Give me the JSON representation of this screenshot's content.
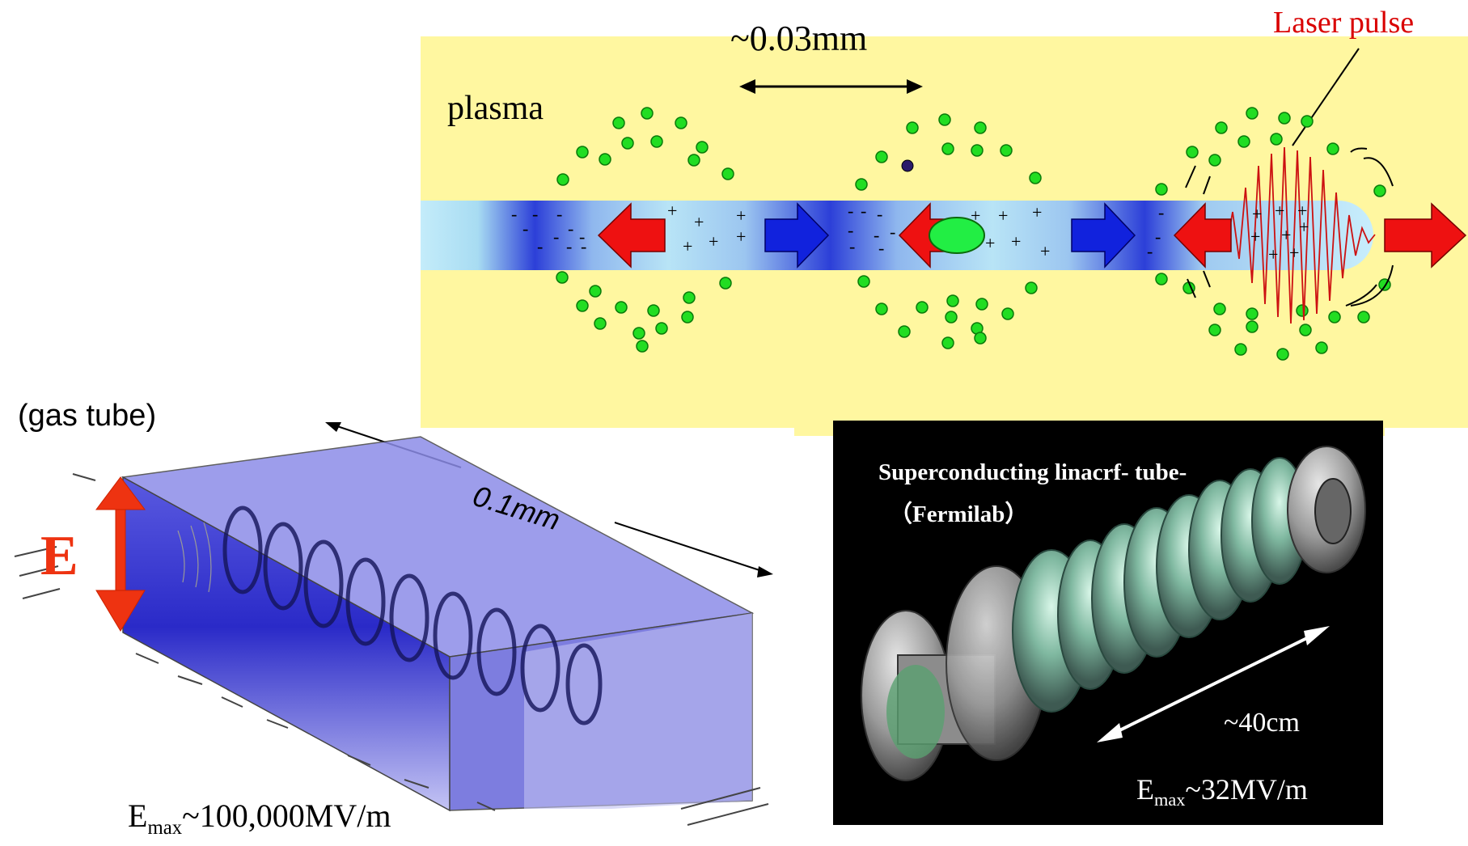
{
  "plasma_panel": {
    "label": "plasma",
    "spacing_label": "~0.03mm",
    "laser_label": "Laser pulse",
    "colors": {
      "background": "#fff7a0",
      "channel": "#a8dcf2",
      "electron": "#22dd22",
      "arrow_red": "#ee1111",
      "arrow_blue": "#1122dd",
      "bunch": "#22ee44",
      "laser": "#cc1111"
    }
  },
  "gas_tube_panel": {
    "label": "(gas tube)",
    "length_label": "0.1mm",
    "field_symbol": "E",
    "field_max": {
      "symbol": "E",
      "subscript": "max",
      "value": "~100,000MV/m"
    }
  },
  "rf_panel": {
    "title": "Superconducting linacrf- tube-",
    "subtitle": "（Fermilab）",
    "length_label": "~40cm",
    "field_max": {
      "symbol": "E",
      "subscript": "max",
      "value": "~32MV/m"
    }
  }
}
